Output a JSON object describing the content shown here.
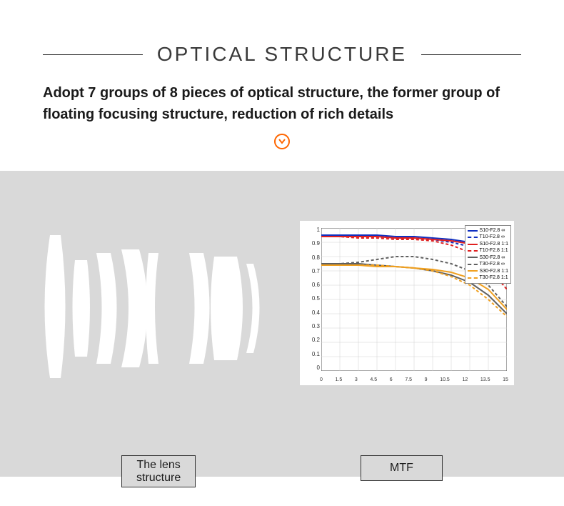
{
  "header": {
    "title": "OPTICAL STRUCTURE",
    "subtitle": "Adopt 7 groups of 8 pieces of optical structure, the former group of floating focusing structure, reduction of rich details",
    "title_line_color": "#333333",
    "title_color": "#3a3a3a",
    "subtitle_color": "#1a1a1a",
    "icon_color": "#ff6600"
  },
  "diagram": {
    "bg_color": "#d9d9d9",
    "lens_label_line1": "The lens",
    "lens_label_line2": "structure",
    "mtf_label": "MTF",
    "lens_fill": "#ffffff"
  },
  "mtf": {
    "type": "line",
    "xlim": [
      0,
      15
    ],
    "ylim": [
      0,
      1
    ],
    "x_ticks": [
      "0",
      "1.5",
      "3",
      "4.5",
      "6",
      "7.5",
      "9",
      "10.5",
      "12",
      "13.5",
      "15"
    ],
    "y_ticks": [
      "1",
      "0.9",
      "0.8",
      "0.7",
      "0.6",
      "0.5",
      "0.4",
      "0.3",
      "0.2",
      "0.1",
      "0"
    ],
    "bg_color": "#ffffff",
    "grid_color": "#d0d0d0",
    "label_fontsize": 7,
    "legend": [
      {
        "label": "S10-F2.8 ∞",
        "color": "#1030c0",
        "dash": "solid"
      },
      {
        "label": "T10-F2.8 ∞",
        "color": "#1030c0",
        "dash": "dashed"
      },
      {
        "label": "S10-F2.8 1:1",
        "color": "#e02020",
        "dash": "solid"
      },
      {
        "label": "T10-F2.8 1:1",
        "color": "#e02020",
        "dash": "dashed"
      },
      {
        "label": "S30-F2.8 ∞",
        "color": "#606060",
        "dash": "solid"
      },
      {
        "label": "T30-F2.8 ∞",
        "color": "#606060",
        "dash": "dashed"
      },
      {
        "label": "S30-F2.8 1:1",
        "color": "#f0a020",
        "dash": "solid"
      },
      {
        "label": "T30-F2.8 1:1",
        "color": "#f0a020",
        "dash": "dashed"
      }
    ],
    "series": [
      {
        "name": "S10-F2.8 ∞",
        "color": "#1030c0",
        "dash": "solid",
        "width": 2,
        "x": [
          0,
          1.5,
          3,
          4.5,
          6,
          7.5,
          9,
          10.5,
          12,
          13.5,
          15
        ],
        "y": [
          0.95,
          0.95,
          0.95,
          0.95,
          0.94,
          0.94,
          0.93,
          0.92,
          0.9,
          0.85,
          0.75
        ]
      },
      {
        "name": "T10-F2.8 ∞",
        "color": "#1030c0",
        "dash": "dashed",
        "width": 2,
        "x": [
          0,
          1.5,
          3,
          4.5,
          6,
          7.5,
          9,
          10.5,
          12,
          13.5,
          15
        ],
        "y": [
          0.95,
          0.95,
          0.94,
          0.94,
          0.93,
          0.93,
          0.92,
          0.9,
          0.87,
          0.78,
          0.62
        ]
      },
      {
        "name": "S10-F2.8 1:1",
        "color": "#e02020",
        "dash": "solid",
        "width": 2,
        "x": [
          0,
          1.5,
          3,
          4.5,
          6,
          7.5,
          9,
          10.5,
          12,
          13.5,
          15
        ],
        "y": [
          0.94,
          0.94,
          0.94,
          0.94,
          0.93,
          0.93,
          0.92,
          0.91,
          0.89,
          0.84,
          0.72
        ]
      },
      {
        "name": "T10-F2.8 1:1",
        "color": "#e02020",
        "dash": "dashed",
        "width": 2,
        "x": [
          0,
          1.5,
          3,
          4.5,
          6,
          7.5,
          9,
          10.5,
          12,
          13.5,
          15
        ],
        "y": [
          0.94,
          0.94,
          0.93,
          0.93,
          0.92,
          0.92,
          0.91,
          0.88,
          0.83,
          0.73,
          0.57
        ]
      },
      {
        "name": "S30-F2.8 ∞",
        "color": "#606060",
        "dash": "solid",
        "width": 2,
        "x": [
          0,
          1.5,
          3,
          4.5,
          6,
          7.5,
          9,
          10.5,
          12,
          13.5,
          15
        ],
        "y": [
          0.75,
          0.75,
          0.75,
          0.74,
          0.73,
          0.72,
          0.7,
          0.67,
          0.62,
          0.53,
          0.4
        ]
      },
      {
        "name": "T30-F2.8 ∞",
        "color": "#606060",
        "dash": "dashed",
        "width": 2,
        "x": [
          0,
          1.5,
          3,
          4.5,
          6,
          7.5,
          9,
          10.5,
          12,
          13.5,
          15
        ],
        "y": [
          0.75,
          0.75,
          0.76,
          0.78,
          0.8,
          0.8,
          0.78,
          0.75,
          0.7,
          0.6,
          0.45
        ]
      },
      {
        "name": "S30-F2.8 1:1",
        "color": "#f0a020",
        "dash": "solid",
        "width": 2,
        "x": [
          0,
          1.5,
          3,
          4.5,
          6,
          7.5,
          9,
          10.5,
          12,
          13.5,
          15
        ],
        "y": [
          0.74,
          0.74,
          0.74,
          0.73,
          0.73,
          0.72,
          0.71,
          0.69,
          0.65,
          0.57,
          0.43
        ]
      },
      {
        "name": "T30-F2.8 1:1",
        "color": "#f0a020",
        "dash": "dashed",
        "width": 2,
        "x": [
          0,
          1.5,
          3,
          4.5,
          6,
          7.5,
          9,
          10.5,
          12,
          13.5,
          15
        ],
        "y": [
          0.74,
          0.74,
          0.74,
          0.74,
          0.73,
          0.72,
          0.7,
          0.66,
          0.6,
          0.5,
          0.38
        ]
      }
    ]
  }
}
